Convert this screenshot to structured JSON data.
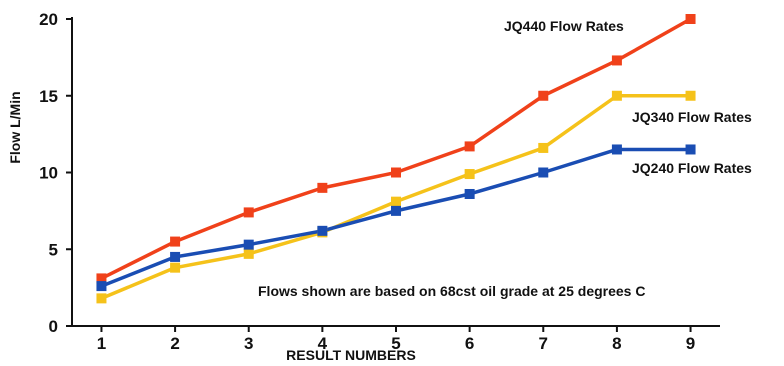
{
  "chart_data": {
    "type": "line",
    "title": "",
    "xlabel": "RESULT NUMBERS",
    "ylabel": "Flow L/Min",
    "x": [
      1,
      2,
      3,
      4,
      5,
      6,
      7,
      8,
      9
    ],
    "x_tick_labels": [
      "1",
      "2",
      "3",
      "4",
      "5",
      "6",
      "7",
      "8",
      "9"
    ],
    "y_ticks": [
      0,
      5,
      10,
      15,
      20
    ],
    "y_tick_labels": [
      "0",
      "5",
      "10",
      "15",
      "20"
    ],
    "xlim": [
      0.6,
      9.4
    ],
    "ylim": [
      0,
      20
    ],
    "grid": false,
    "series": [
      {
        "name": "JQ440 Flow Rates",
        "color": "#f0411a",
        "values": [
          3.1,
          5.5,
          7.4,
          9.0,
          10.0,
          11.7,
          15.0,
          17.3,
          20.0
        ]
      },
      {
        "name": "JQ340 Flow Rates",
        "color": "#f5c21a",
        "values": [
          1.8,
          3.8,
          4.7,
          6.1,
          8.1,
          9.9,
          11.6,
          15.0,
          15.0
        ]
      },
      {
        "name": "JQ240 Flow Rates",
        "color": "#1a4db3",
        "values": [
          2.6,
          4.5,
          5.3,
          6.2,
          7.5,
          8.6,
          10.0,
          11.5,
          11.5
        ]
      }
    ],
    "annotation": "Flows shown are based on 68cst oil grade at 25 degrees C"
  }
}
